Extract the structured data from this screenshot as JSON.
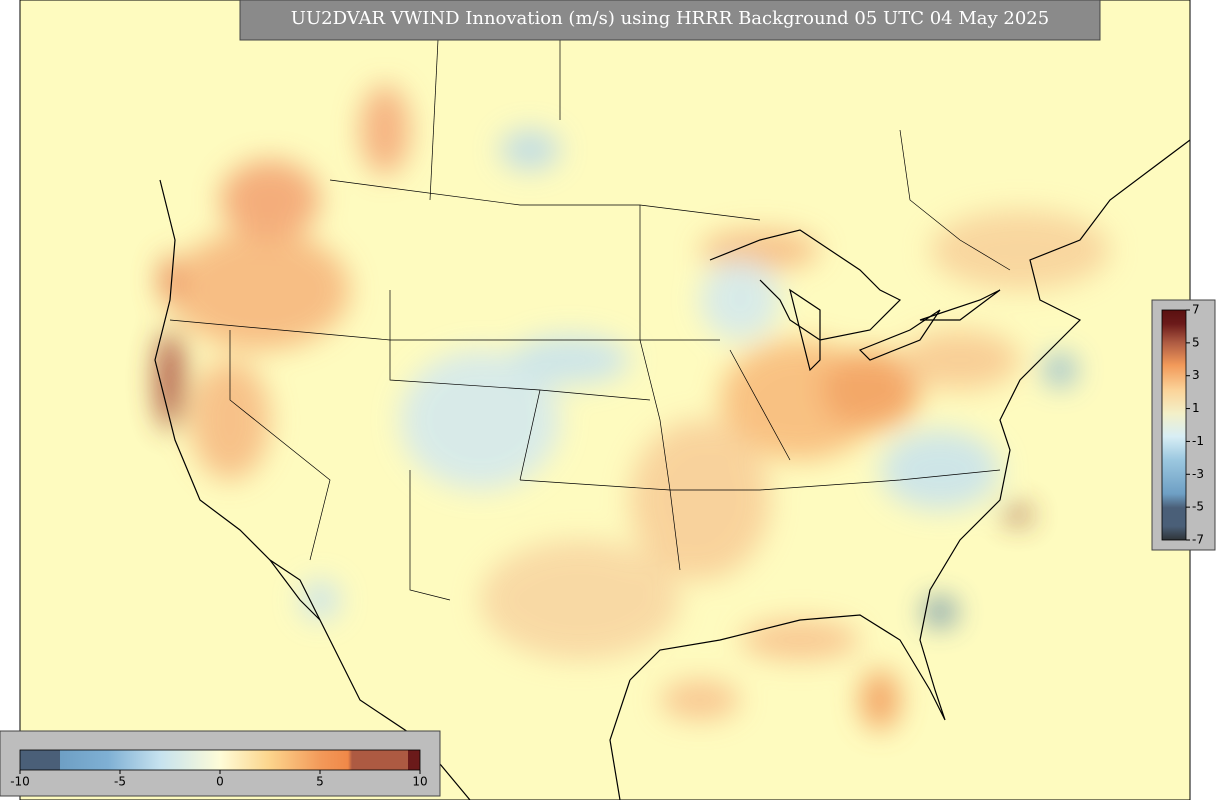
{
  "title": "UU2DVAR VWIND Innovation (m/s) using HRRR Background 05 UTC 04 May 2025",
  "colorbars": [
    {
      "range": [
        -10,
        10
      ],
      "ticks": [
        -10,
        -5,
        0,
        5,
        10
      ]
    },
    {
      "range": [
        -7,
        7
      ],
      "ticks": [
        7,
        5,
        3,
        1,
        -1,
        -3,
        -5,
        -7
      ]
    }
  ]
}
